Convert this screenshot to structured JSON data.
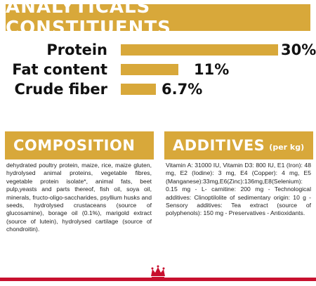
{
  "banner": {
    "title": "ANALYTICALS CONSTITUENTS"
  },
  "analytics": [
    {
      "label": "Protein",
      "value": "30%",
      "fraction": 0.3
    },
    {
      "label": "Fat content",
      "value": "11%",
      "fraction": 0.11
    },
    {
      "label": "Crude fiber",
      "value": "6.7%",
      "fraction": 0.067
    }
  ],
  "composition": {
    "heading": "COMPOSITION",
    "text": "dehydrated poultry protein, maize, rice, maize gluten, hydrolysed animal proteins, vegetable fibres, vegetable protein isolate*, animal fats, beet pulp,yeasts and parts thereof, fish oil, soya oil, minerals, fructo-oligo-saccharides, psyllium husks and seeds, hydrolysed crustaceans (source of glucosamine), borage oil (0.1%), marigold extract (source of lutein), hydrolysed cartilage (source of chondroitin)."
  },
  "additives": {
    "heading": "ADDITIVES",
    "heading_unit": "(per kg)",
    "text": "Vitamin A: 31000 IU, Vitamin D3: 800 IU, E1 (Iron): 48 mg, E2 (Iodine): 3 mg, E4 (Copper): 4 mg, E5 (Manganese):33mg,E6(Zinc):136mg,E8(Selenium): 0.15 mg - L- carnitine: 200 mg - Technological additives: Clinoptilolite of sedimentary origin: 10 g - Sensory additives: Tea extract (source of polyphenols): 150 mg - Preservatives - Antioxidants."
  },
  "colors": {
    "accent": "#d8a83a",
    "brand_red": "#c8102e"
  },
  "footer": {
    "logo_icon": "crown-icon"
  }
}
